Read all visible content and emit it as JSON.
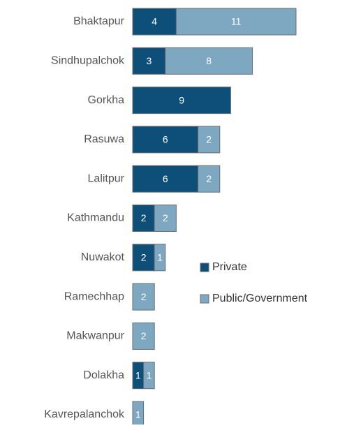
{
  "chart_data": {
    "type": "bar",
    "orientation": "horizontal",
    "stacked": true,
    "categories": [
      "Bhaktapur",
      "Sindhupalchok",
      "Gorkha",
      "Rasuwa",
      "Lalitpur",
      "Kathmandu",
      "Nuwakot",
      "Ramechhap",
      "Makwanpur",
      "Dolakha",
      "Kavrepalanchok"
    ],
    "series": [
      {
        "name": "Private",
        "color": "#0e4f7a",
        "values": [
          4,
          3,
          9,
          6,
          6,
          2,
          2,
          null,
          null,
          1,
          null
        ]
      },
      {
        "name": "Public/Government",
        "color": "#7ea8c2",
        "values": [
          11,
          8,
          null,
          2,
          2,
          2,
          1,
          2,
          2,
          1,
          1
        ]
      }
    ],
    "legend": "right"
  }
}
